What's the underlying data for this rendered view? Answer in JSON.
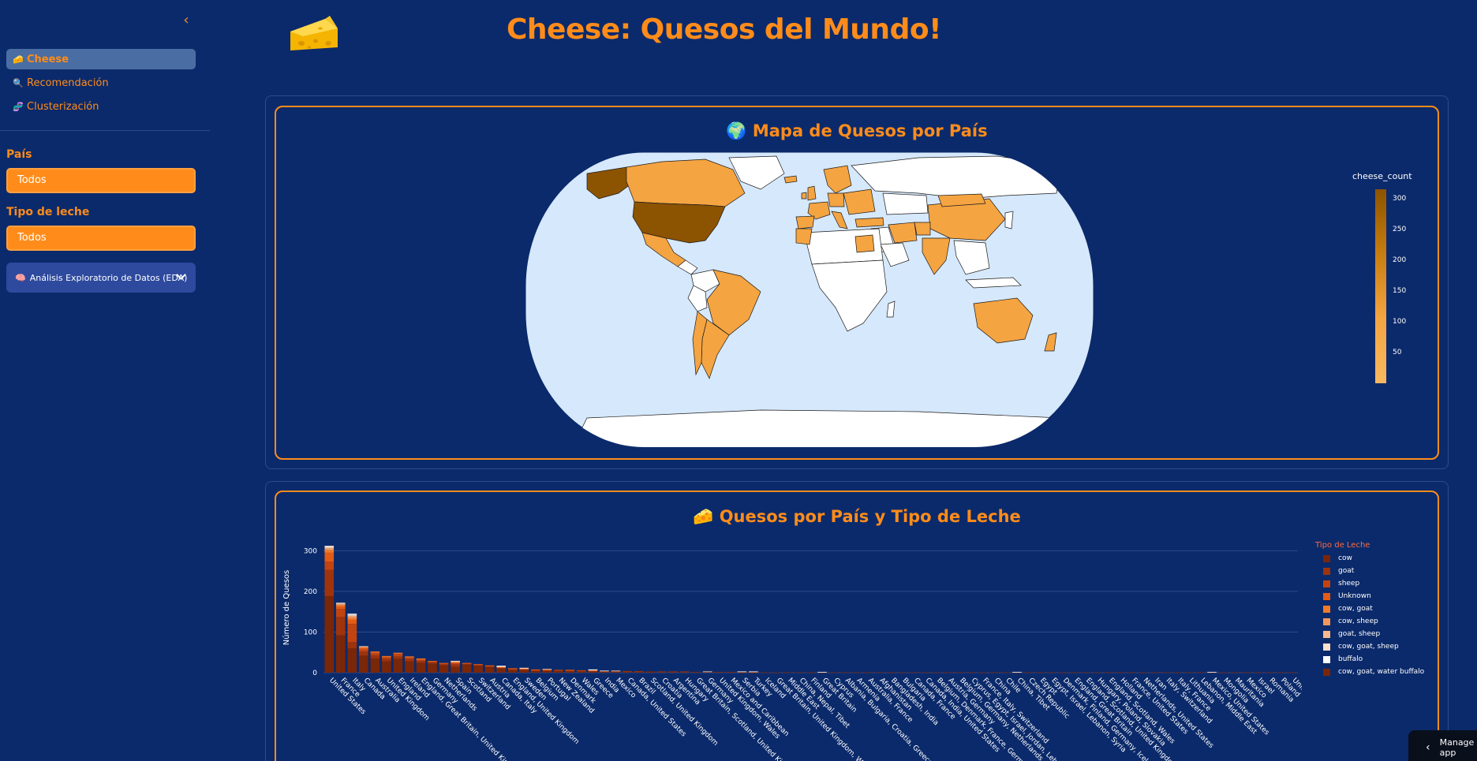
{
  "sidebar": {
    "collapse_icon": "chevron-left-icon",
    "nav": [
      {
        "icon": "🧀",
        "label": "Cheese",
        "active": true
      },
      {
        "icon": "🔍",
        "label": "Recomendación",
        "active": false
      },
      {
        "icon": "🧬",
        "label": "Clusterización",
        "active": false
      }
    ],
    "pais_label": "País",
    "pais_value": "Todos",
    "leche_label": "Tipo de leche",
    "leche_value": "Todos",
    "eda_icon": "🧠",
    "eda_label": "Análisis Exploratorio de Datos (EDA)"
  },
  "header": {
    "title": "Cheese: Quesos del Mundo!",
    "logo_icon": "cheese-icon"
  },
  "map_card": {
    "icon": "🌍",
    "title": "Mapa de Quesos por País",
    "colorbar_title": "cheese_count",
    "colorbar_ticks": [
      "300",
      "250",
      "200",
      "150",
      "100",
      "50"
    ],
    "colors": {
      "ocean": "#d6e8fb",
      "land_empty": "#ffffff",
      "low": "#f5a442",
      "high": "#8c5300"
    }
  },
  "bar_card": {
    "icon": "🧀",
    "title": "Quesos por País y Tipo de Leche",
    "legend_title": "Tipo de Leche",
    "legend": [
      {
        "name": "cow",
        "color": "#7a2608"
      },
      {
        "name": "goat",
        "color": "#9e330c"
      },
      {
        "name": "sheep",
        "color": "#c24410"
      },
      {
        "name": "Unknown",
        "color": "#e35b14"
      },
      {
        "name": "cow, goat",
        "color": "#f07a2a"
      },
      {
        "name": "cow, sheep",
        "color": "#f5975a"
      },
      {
        "name": "goat, sheep",
        "color": "#f8b88e"
      },
      {
        "name": "cow, goat, sheep",
        "color": "#fde0cc"
      },
      {
        "name": "buffalo",
        "color": "#ffffff"
      },
      {
        "name": "cow, goat, water buffalo",
        "color": "#7a2608"
      }
    ]
  },
  "chart_data": {
    "type": "bar",
    "title": "Quesos por País y Tipo de Leche",
    "ylabel": "Número de Quesos",
    "xlabel": "",
    "ylim": [
      0,
      320
    ],
    "yticks": [
      0,
      100,
      200,
      300
    ],
    "categories": [
      "United States",
      "France",
      "Italy",
      "Canada",
      "Australia",
      "United Kingdom",
      "England",
      "Ireland",
      "England, Great Britain, United Kingdom",
      "Germany",
      "Netherlands",
      "Spain",
      "Scotland",
      "Switzerland",
      "Austria",
      "Canada, Italy",
      "England, United Kingdom",
      "Sweden",
      "Belgium",
      "Portugal",
      "New Zealand",
      "Denmark",
      "Wales",
      "Greece",
      "India",
      "Mexico",
      "Canada, United States",
      "Brazil",
      "Scotland, United Kingdom",
      "Croatia",
      "Argentina",
      "Hungary",
      "Great Britain, Scotland, United Kingdom",
      "Germany",
      "United Kingdom, Wales",
      "Mexico and Caribbean",
      "Serbia",
      "Turkey",
      "Iceland",
      "Great Britain, United Kingdom, Wales",
      "Middle East",
      "China, Nepal, Tibet",
      "Finland",
      "Great Britain",
      "Cyprus",
      "Albania, Bulgaria, Croatia, Greece",
      "Armenia",
      "Australia, France",
      "Afghanistan",
      "Bangladesh, India",
      "Bulgaria",
      "Canada, France",
      "Canada, India, United States",
      "Belgium, Denmark, France, Germany",
      "Austria, Germany",
      "Belgium, Germany, Netherlands",
      "Cyprus, Egypt, Israel, Jordan, Lebanon",
      "France, Italy, Switzerland",
      "China",
      "Chile",
      "China, Tibet",
      "Czech Republic",
      "Egypt",
      "Egypt, Israel, Lebanon, Syria",
      "Denmark, Finland, Germany, Iceland",
      "England, Great Britain",
      "England, Scotland, United Kingdom",
      "Hungary, Poland, Slovakia",
      "England, Scotland, Wales",
      "Holland",
      "France, United States",
      "Netherlands, United States",
      "Iran",
      "Italy, Switzerland",
      "Italy, France",
      "Lithuania",
      "Lebanon, Middle East",
      "Mexico, United States",
      "Mongolia",
      "Mauritania",
      "Mexico",
      "Israel",
      "Romania",
      "Poland",
      "United Kingdom, United States"
    ],
    "series": [
      {
        "name": "cow",
        "values": [
          188,
          92,
          60,
          42,
          35,
          28,
          34,
          28,
          24,
          22,
          18,
          14,
          20,
          17,
          14,
          10,
          6,
          7,
          5,
          5,
          5,
          4,
          4,
          2,
          3,
          3,
          3,
          3,
          3,
          2,
          2,
          2,
          2,
          2,
          2,
          2,
          1,
          1,
          1,
          1,
          1,
          1,
          1,
          1,
          1,
          1,
          1,
          1,
          1,
          1,
          1,
          1,
          1,
          1,
          1,
          1,
          1,
          1,
          1,
          1,
          1,
          1,
          1,
          1,
          1,
          1,
          1,
          1,
          1,
          1,
          1,
          1,
          1,
          1,
          1,
          1,
          1,
          1,
          1,
          1,
          1,
          1,
          1,
          1,
          1
        ]
      },
      {
        "name": "goat",
        "values": [
          65,
          45,
          15,
          10,
          8,
          6,
          6,
          6,
          5,
          3,
          3,
          6,
          2,
          2,
          2,
          2,
          3,
          1,
          1,
          1,
          1,
          1,
          1,
          2,
          1,
          1,
          1,
          1,
          0,
          1,
          1,
          1,
          0,
          0,
          0,
          0,
          1,
          0,
          0,
          0,
          0,
          0,
          0,
          0,
          0,
          0,
          0,
          0,
          0,
          0,
          0,
          0,
          0,
          0,
          0,
          0,
          0,
          0,
          0,
          0,
          0,
          0,
          0,
          0,
          0,
          0,
          0,
          0,
          0,
          0,
          0,
          0,
          0,
          0,
          0,
          0,
          0,
          0,
          0,
          0,
          0,
          0,
          0,
          0,
          0
        ]
      },
      {
        "name": "sheep",
        "values": [
          20,
          20,
          45,
          5,
          5,
          4,
          6,
          3,
          3,
          2,
          2,
          4,
          1,
          1,
          1,
          1,
          1,
          1,
          1,
          1,
          1,
          1,
          1,
          2,
          0,
          0,
          0,
          0,
          0,
          0,
          0,
          0,
          0,
          0,
          0,
          0,
          0,
          1,
          0,
          0,
          0,
          0,
          0,
          0,
          0,
          0,
          0,
          0,
          0,
          0,
          0,
          0,
          0,
          0,
          0,
          0,
          0,
          0,
          0,
          0,
          0,
          0,
          0,
          0,
          0,
          0,
          0,
          0,
          0,
          0,
          0,
          0,
          0,
          0,
          0,
          0,
          0,
          0,
          0,
          0,
          0,
          0,
          0,
          0,
          0
        ]
      },
      {
        "name": "Unknown",
        "values": [
          22,
          6,
          10,
          4,
          3,
          2,
          2,
          2,
          2,
          2,
          1,
          1,
          1,
          1,
          1,
          1,
          1,
          1,
          1,
          1,
          0,
          1,
          0,
          0,
          0,
          0,
          0,
          0,
          0,
          0,
          0,
          0,
          0,
          0,
          0,
          0,
          0,
          0,
          0,
          0,
          0,
          0,
          0,
          0,
          0,
          0,
          0,
          0,
          0,
          0,
          0,
          0,
          0,
          0,
          0,
          0,
          0,
          0,
          0,
          0,
          0,
          0,
          0,
          0,
          0,
          0,
          0,
          0,
          0,
          0,
          0,
          0,
          0,
          0,
          0,
          0,
          0,
          0,
          0,
          0,
          0,
          0,
          0,
          0,
          0
        ]
      },
      {
        "name": "cow, goat",
        "values": [
          6,
          3,
          4,
          2,
          1,
          1,
          1,
          1,
          1,
          0,
          0,
          1,
          0,
          0,
          0,
          0,
          0,
          0,
          0,
          0,
          0,
          0,
          0,
          0,
          0,
          0,
          0,
          0,
          0,
          0,
          0,
          0,
          0,
          0,
          0,
          0,
          0,
          0,
          0,
          0,
          0,
          0,
          0,
          0,
          0,
          0,
          0,
          0,
          0,
          0,
          0,
          0,
          0,
          0,
          0,
          0,
          0,
          0,
          0,
          0,
          0,
          0,
          0,
          0,
          0,
          0,
          0,
          0,
          0,
          0,
          0,
          0,
          0,
          0,
          0,
          0,
          0,
          0,
          0,
          0,
          0,
          0,
          0,
          0,
          0
        ]
      },
      {
        "name": "cow, sheep",
        "values": [
          4,
          2,
          4,
          1,
          0,
          0,
          0,
          0,
          0,
          0,
          0,
          1,
          0,
          0,
          0,
          0,
          0,
          0,
          0,
          0,
          0,
          0,
          0,
          0,
          0,
          0,
          0,
          0,
          0,
          0,
          0,
          0,
          0,
          0,
          0,
          0,
          0,
          0,
          0,
          0,
          0,
          0,
          0,
          0,
          0,
          0,
          0,
          0,
          0,
          0,
          0,
          0,
          0,
          0,
          0,
          0,
          0,
          0,
          0,
          0,
          0,
          0,
          0,
          0,
          0,
          0,
          0,
          0,
          0,
          0,
          0,
          0,
          0,
          0,
          0,
          0,
          0,
          0,
          0,
          0,
          0,
          0,
          0,
          0,
          0
        ]
      },
      {
        "name": "goat, sheep",
        "values": [
          2,
          2,
          2,
          0,
          0,
          0,
          0,
          0,
          0,
          0,
          0,
          1,
          0,
          0,
          0,
          1,
          0,
          1,
          0,
          0,
          0,
          0,
          0,
          0,
          0,
          0,
          0,
          0,
          0,
          0,
          0,
          0,
          0,
          0,
          0,
          0,
          0,
          0,
          0,
          0,
          0,
          0,
          0,
          0,
          0,
          0,
          0,
          0,
          0,
          0,
          0,
          0,
          0,
          0,
          0,
          0,
          0,
          0,
          0,
          0,
          0,
          0,
          0,
          0,
          0,
          0,
          0,
          0,
          0,
          0,
          0,
          0,
          0,
          0,
          0,
          0,
          0,
          0,
          0,
          0,
          0,
          0,
          0,
          0,
          0
        ]
      },
      {
        "name": "cow, goat, sheep",
        "values": [
          5,
          2,
          3,
          1,
          0,
          0,
          0,
          0,
          0,
          0,
          0,
          1,
          0,
          0,
          0,
          1,
          0,
          1,
          0,
          1,
          0,
          0,
          0,
          1,
          0,
          1,
          0,
          0,
          0,
          0,
          0,
          0,
          0,
          1,
          0,
          0,
          0,
          0,
          0,
          0,
          0,
          0,
          0,
          0,
          0,
          0,
          0,
          0,
          0,
          0,
          0,
          0,
          0,
          0,
          0,
          0,
          0,
          0,
          0,
          0,
          0,
          0,
          0,
          0,
          0,
          0,
          0,
          0,
          0,
          0,
          0,
          0,
          0,
          0,
          0,
          0,
          0,
          0,
          0,
          0,
          0,
          0,
          0,
          0,
          0
        ]
      },
      {
        "name": "buffalo",
        "values": [
          0,
          0,
          2,
          0,
          0,
          0,
          0,
          0,
          0,
          0,
          0,
          0,
          0,
          0,
          0,
          1,
          0,
          0,
          0,
          0,
          0,
          0,
          0,
          1,
          1,
          0,
          0,
          0,
          0,
          0,
          0,
          0,
          0,
          0,
          0,
          0,
          1,
          1,
          0,
          0,
          0,
          0,
          0,
          1,
          0,
          0,
          0,
          0,
          0,
          0,
          0,
          0,
          0,
          0,
          0,
          0,
          0,
          0,
          0,
          0,
          1,
          0,
          0,
          0,
          0,
          0,
          0,
          0,
          0,
          0,
          0,
          0,
          0,
          0,
          0,
          0,
          0,
          1,
          0,
          0,
          0,
          0,
          0,
          0,
          0
        ]
      }
    ],
    "legend_position": "right",
    "grid": true
  },
  "footer": {
    "manage_label": "Manage app",
    "manage_icon": "chevron-left-icon"
  }
}
